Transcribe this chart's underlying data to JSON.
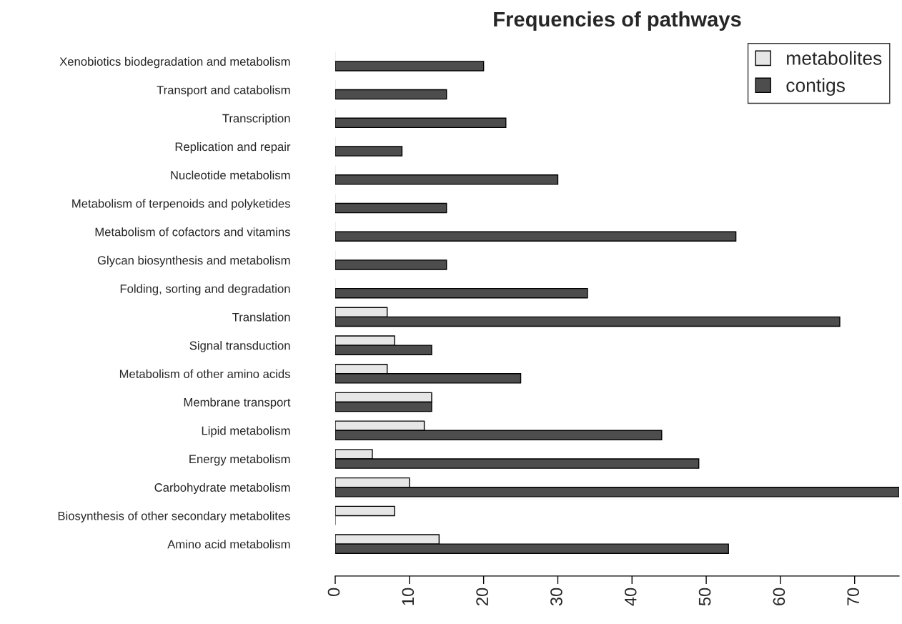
{
  "chart_data": {
    "type": "bar",
    "orientation": "horizontal",
    "title": "Frequencies of pathways",
    "categories": [
      "Xenobiotics biodegradation and metabolism",
      "Transport and catabolism",
      "Transcription",
      "Replication and repair",
      "Nucleotide metabolism",
      "Metabolism of terpenoids and polyketides",
      "Metabolism of cofactors and vitamins",
      "Glycan biosynthesis and metabolism",
      "Folding, sorting and degradation",
      "Translation",
      "Signal transduction",
      "Metabolism of other amino acids",
      "Membrane transport",
      "Lipid metabolism",
      "Energy metabolism",
      "Carbohydrate metabolism",
      "Biosynthesis of other secondary metabolites",
      "Amino acid metabolism"
    ],
    "series": [
      {
        "name": "metabolites",
        "color": "#e6e6e6",
        "values": [
          0,
          0,
          0,
          0,
          0,
          0,
          0,
          0,
          0,
          7,
          8,
          7,
          13,
          12,
          5,
          10,
          8,
          14
        ]
      },
      {
        "name": "contigs",
        "color": "#4d4d4d",
        "values": [
          20,
          15,
          23,
          9,
          30,
          15,
          54,
          15,
          34,
          68,
          13,
          25,
          13,
          44,
          49,
          76,
          0,
          53
        ]
      }
    ],
    "xlim": [
      0,
      76
    ],
    "xticks": [
      0,
      10,
      20,
      30,
      40,
      50,
      60,
      70
    ],
    "grid": false,
    "legend": "top right"
  }
}
